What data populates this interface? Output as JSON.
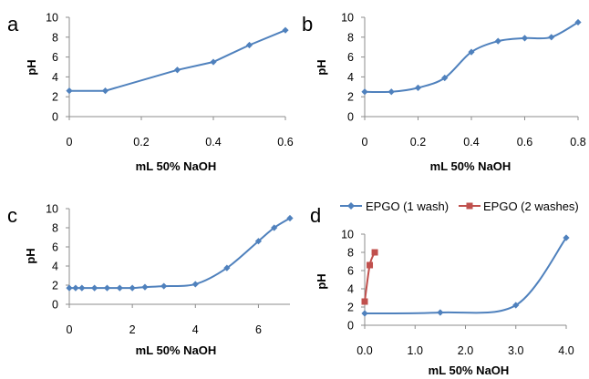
{
  "chart_data": [
    {
      "panel": "a",
      "type": "line",
      "xlabel": "mL 50% NaOH",
      "ylabel": "pH",
      "xlim": [
        0,
        0.6
      ],
      "ylim": [
        0,
        10
      ],
      "xticks": [
        0,
        0.2,
        0.4,
        0.6
      ],
      "xtick_labels": [
        "0",
        "0.2",
        "0.4",
        "0.6"
      ],
      "yticks": [
        0,
        2,
        4,
        6,
        8,
        10
      ],
      "ytick_labels": [
        "0",
        "2",
        "4",
        "6",
        "8",
        "10"
      ],
      "grid": false,
      "series": [
        {
          "color": "#4f81bd",
          "marker": "diamond",
          "x": [
            0,
            0.1,
            0.3,
            0.4,
            0.5,
            0.6
          ],
          "y": [
            2.6,
            2.6,
            4.7,
            5.5,
            7.2,
            8.7
          ]
        }
      ]
    },
    {
      "panel": "b",
      "type": "line",
      "xlabel": "mL 50% NaOH",
      "ylabel": "pH",
      "xlim": [
        0,
        0.8
      ],
      "ylim": [
        0,
        10
      ],
      "xticks": [
        0,
        0.2,
        0.4,
        0.6,
        0.8
      ],
      "xtick_labels": [
        "0",
        "0.2",
        "0.4",
        "0.6",
        "0.8"
      ],
      "yticks": [
        0,
        2,
        4,
        6,
        8,
        10
      ],
      "ytick_labels": [
        "0",
        "2",
        "4",
        "6",
        "8",
        "10"
      ],
      "grid": false,
      "series": [
        {
          "color": "#4f81bd",
          "marker": "diamond",
          "x": [
            0,
            0.1,
            0.2,
            0.3,
            0.4,
            0.5,
            0.6,
            0.7,
            0.8
          ],
          "y": [
            2.5,
            2.5,
            2.9,
            3.9,
            6.5,
            7.6,
            7.9,
            8.0,
            9.5
          ]
        }
      ]
    },
    {
      "panel": "c",
      "type": "line",
      "xlabel": "mL 50% NaOH",
      "ylabel": "pH",
      "xlim": [
        0,
        7
      ],
      "ylim": [
        0,
        10
      ],
      "xticks": [
        0,
        2,
        4,
        6
      ],
      "xtick_labels": [
        "0",
        "2",
        "4",
        "6"
      ],
      "yticks": [
        0,
        2,
        4,
        6,
        8,
        10
      ],
      "ytick_labels": [
        "0",
        "2",
        "4",
        "6",
        "8",
        "10"
      ],
      "grid": false,
      "series": [
        {
          "color": "#4f81bd",
          "marker": "diamond",
          "x": [
            0,
            0.2,
            0.4,
            0.8,
            1.2,
            1.6,
            2.0,
            2.4,
            3.0,
            4.0,
            5.0,
            6.0,
            6.5,
            7.0
          ],
          "y": [
            1.7,
            1.7,
            1.7,
            1.7,
            1.7,
            1.7,
            1.7,
            1.8,
            1.9,
            2.1,
            3.8,
            6.6,
            8.0,
            9.0
          ]
        }
      ]
    },
    {
      "panel": "d",
      "type": "line",
      "xlabel": "mL 50% NaOH",
      "ylabel": "pH",
      "xlim": [
        0,
        4
      ],
      "ylim": [
        0,
        10
      ],
      "xticks": [
        0,
        1,
        2,
        3,
        4
      ],
      "xtick_labels": [
        "0.0",
        "1.0",
        "2.0",
        "3.0",
        "4.0"
      ],
      "yticks": [
        0,
        2,
        4,
        6,
        8,
        10
      ],
      "ytick_labels": [
        "0",
        "2",
        "4",
        "6",
        "8",
        "10"
      ],
      "grid": false,
      "legend": "top",
      "series": [
        {
          "name": "EPGO (1 wash)",
          "color": "#4f81bd",
          "marker": "diamond",
          "x": [
            0,
            1.5,
            3.0,
            4.0
          ],
          "y": [
            1.3,
            1.4,
            2.2,
            9.6
          ]
        },
        {
          "name": "EPGO (2 washes)",
          "color": "#c0504d",
          "marker": "square",
          "x": [
            0,
            0.1,
            0.2
          ],
          "y": [
            2.6,
            6.6,
            8.0
          ]
        }
      ]
    }
  ]
}
